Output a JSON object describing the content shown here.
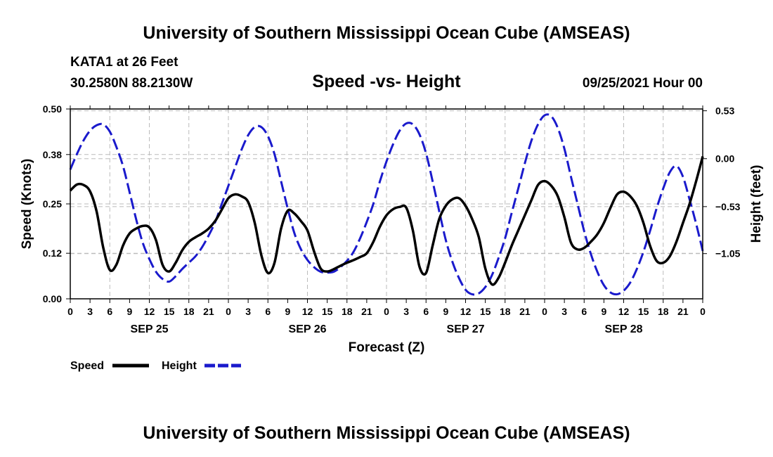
{
  "header": {
    "title_top": "University of Southern Mississippi Ocean Cube (AMSEAS)",
    "station": "KATA1 at 26 Feet",
    "coords": "30.2580N  88.2130W",
    "chart_title": "Speed -vs- Height",
    "datetime": "09/25/2021 Hour 00"
  },
  "footer": {
    "title_bottom": "University of Southern Mississippi Ocean Cube (AMSEAS)"
  },
  "legend": {
    "speed_label": "Speed",
    "height_label": "Height"
  },
  "colors": {
    "speed": "#000000",
    "height": "#1a1acc",
    "grid": "#bbbbbb"
  },
  "chart_data": {
    "type": "line",
    "title": "Speed -vs- Height",
    "xlabel": "Forecast (Z)",
    "ylabel": "Speed (Knots)",
    "ylabel_right": "Height (feet)",
    "xlim": [
      0,
      96
    ],
    "ylim": [
      0,
      0.5
    ],
    "ylim_right": [
      -1.55,
      0.55
    ],
    "x_ticks": [
      0,
      3,
      6,
      9,
      12,
      15,
      18,
      21,
      24,
      27,
      30,
      33,
      36,
      39,
      42,
      45,
      48,
      51,
      54,
      57,
      60,
      63,
      66,
      69,
      72,
      75,
      78,
      81,
      84,
      87,
      90,
      93,
      96
    ],
    "x_tick_labels": [
      "0",
      "3",
      "6",
      "9",
      "12",
      "15",
      "18",
      "21",
      "0",
      "3",
      "6",
      "9",
      "12",
      "15",
      "18",
      "21",
      "0",
      "3",
      "6",
      "9",
      "12",
      "15",
      "18",
      "21",
      "0",
      "3",
      "6",
      "9",
      "12",
      "15",
      "18",
      "21",
      "0"
    ],
    "day_labels": [
      {
        "x": 12,
        "label": "SEP 25"
      },
      {
        "x": 36,
        "label": "SEP 26"
      },
      {
        "x": 60,
        "label": "SEP 27"
      },
      {
        "x": 84,
        "label": "SEP 28"
      }
    ],
    "y_ticks_left": [
      0.0,
      0.12,
      0.25,
      0.38,
      0.5
    ],
    "y_tick_labels_left": [
      "0.00",
      "0.12",
      "0.25",
      "0.38",
      "0.50"
    ],
    "y_ticks_right": [
      0.53,
      0.0,
      -0.53,
      -1.05
    ],
    "y_tick_labels_right": [
      "0.53",
      "0.00",
      "−0.53",
      "−1.05"
    ],
    "grid": true,
    "series": [
      {
        "name": "Speed",
        "axis": "left",
        "style": "solid",
        "x": [
          0,
          1,
          2,
          3,
          4,
          5,
          6,
          7,
          8,
          9,
          10,
          11,
          12,
          13,
          14,
          15,
          16,
          17,
          18,
          19,
          20,
          21,
          22,
          23,
          24,
          25,
          26,
          27,
          28,
          29,
          30,
          31,
          32,
          33,
          34,
          35,
          36,
          37,
          38,
          39,
          40,
          41,
          42,
          43,
          44,
          45,
          46,
          47,
          48,
          49,
          50,
          51,
          52,
          53,
          54,
          55,
          56,
          57,
          58,
          59,
          60,
          61,
          62,
          63,
          64,
          65,
          66,
          67,
          68,
          69,
          70,
          71,
          72,
          73,
          74,
          75,
          76,
          77,
          78,
          79,
          80,
          81,
          82,
          83,
          84,
          85,
          86,
          87,
          88,
          89,
          90,
          91,
          92,
          93,
          94,
          95,
          96
        ],
        "values": [
          0.285,
          0.301,
          0.3,
          0.283,
          0.23,
          0.135,
          0.076,
          0.09,
          0.14,
          0.172,
          0.185,
          0.192,
          0.188,
          0.155,
          0.09,
          0.072,
          0.095,
          0.128,
          0.15,
          0.162,
          0.172,
          0.185,
          0.205,
          0.235,
          0.265,
          0.275,
          0.27,
          0.255,
          0.2,
          0.115,
          0.068,
          0.095,
          0.185,
          0.232,
          0.225,
          0.205,
          0.18,
          0.125,
          0.08,
          0.072,
          0.078,
          0.087,
          0.095,
          0.102,
          0.11,
          0.12,
          0.15,
          0.19,
          0.22,
          0.236,
          0.242,
          0.24,
          0.18,
          0.085,
          0.068,
          0.14,
          0.21,
          0.245,
          0.262,
          0.265,
          0.245,
          0.21,
          0.163,
          0.08,
          0.038,
          0.055,
          0.095,
          0.14,
          0.18,
          0.22,
          0.26,
          0.3,
          0.31,
          0.298,
          0.27,
          0.215,
          0.148,
          0.13,
          0.134,
          0.15,
          0.17,
          0.2,
          0.24,
          0.275,
          0.282,
          0.27,
          0.245,
          0.2,
          0.14,
          0.1,
          0.095,
          0.112,
          0.15,
          0.2,
          0.25,
          0.31,
          0.375
        ]
      },
      {
        "name": "Height",
        "axis": "right",
        "style": "dashed",
        "x": [
          0,
          1,
          2,
          3,
          4,
          5,
          6,
          7,
          8,
          9,
          10,
          11,
          12,
          13,
          14,
          15,
          16,
          17,
          18,
          19,
          20,
          21,
          22,
          23,
          24,
          25,
          26,
          27,
          28,
          29,
          30,
          31,
          32,
          33,
          34,
          35,
          36,
          37,
          38,
          39,
          40,
          41,
          42,
          43,
          44,
          45,
          46,
          47,
          48,
          49,
          50,
          51,
          52,
          53,
          54,
          55,
          56,
          57,
          58,
          59,
          60,
          61,
          62,
          63,
          64,
          65,
          66,
          67,
          68,
          69,
          70,
          71,
          72,
          73,
          74,
          75,
          76,
          77,
          78,
          79,
          80,
          81,
          82,
          83,
          84,
          85,
          86,
          87,
          88,
          89,
          90,
          91,
          92,
          93,
          94,
          95,
          96
        ],
        "values": [
          -0.12,
          0.05,
          0.2,
          0.31,
          0.37,
          0.38,
          0.3,
          0.13,
          -0.08,
          -0.37,
          -0.67,
          -0.93,
          -1.11,
          -1.25,
          -1.33,
          -1.36,
          -1.3,
          -1.22,
          -1.15,
          -1.08,
          -0.98,
          -0.85,
          -0.7,
          -0.5,
          -0.3,
          -0.1,
          0.1,
          0.26,
          0.35,
          0.35,
          0.25,
          0.05,
          -0.25,
          -0.55,
          -0.82,
          -1.0,
          -1.12,
          -1.2,
          -1.25,
          -1.26,
          -1.25,
          -1.2,
          -1.13,
          -1.03,
          -0.88,
          -0.7,
          -0.5,
          -0.25,
          -0.03,
          0.16,
          0.31,
          0.39,
          0.38,
          0.27,
          0.06,
          -0.25,
          -0.58,
          -0.9,
          -1.14,
          -1.32,
          -1.45,
          -1.5,
          -1.49,
          -1.42,
          -1.29,
          -1.1,
          -0.88,
          -0.6,
          -0.33,
          -0.05,
          0.2,
          0.38,
          0.48,
          0.47,
          0.34,
          0.11,
          -0.2,
          -0.5,
          -0.8,
          -1.05,
          -1.25,
          -1.4,
          -1.48,
          -1.5,
          -1.46,
          -1.37,
          -1.22,
          -1.03,
          -0.8,
          -0.55,
          -0.33,
          -0.15,
          -0.08,
          -0.2,
          -0.45,
          -0.72,
          -1.02
        ]
      }
    ]
  }
}
